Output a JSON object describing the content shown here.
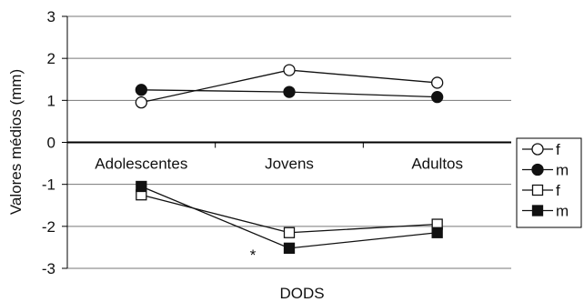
{
  "chart_data": {
    "type": "line",
    "categories": [
      "Adolescentes",
      "Jovens",
      "Adultos"
    ],
    "ylabel": "Valores médios (mm)",
    "xlabel": "DODS",
    "ylim": [
      -3,
      3
    ],
    "yticks": [
      "3",
      "2",
      "1",
      "0",
      "-1",
      "-2",
      "-3"
    ],
    "ytick_values": [
      3,
      2,
      1,
      0,
      -1,
      -2,
      -3
    ],
    "grid": true,
    "legend_position": "right",
    "series": [
      {
        "name": "f",
        "marker": "circle",
        "filled": false,
        "values": [
          0.95,
          1.72,
          1.42
        ]
      },
      {
        "name": "m",
        "marker": "circle",
        "filled": true,
        "values": [
          1.25,
          1.2,
          1.08
        ]
      },
      {
        "name": "f",
        "marker": "square",
        "filled": false,
        "values": [
          -1.25,
          -2.15,
          -1.95
        ]
      },
      {
        "name": "m",
        "marker": "square",
        "filled": true,
        "values": [
          -1.05,
          -2.52,
          -2.15
        ]
      }
    ],
    "annotations": [
      {
        "text": "*",
        "x": "Jovens",
        "y": -2.7
      }
    ]
  }
}
